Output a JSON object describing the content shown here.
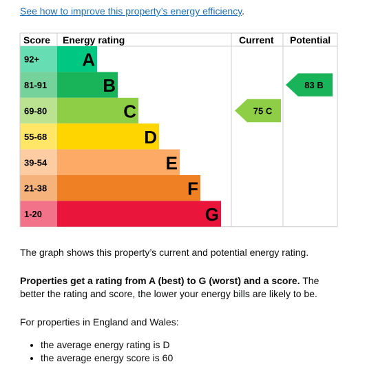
{
  "link": {
    "text": "See how to improve this property’s energy efficiency",
    "suffix": "."
  },
  "table": {
    "headers": [
      "Score",
      "Energy rating",
      "Current",
      "Potential"
    ],
    "rows": [
      {
        "score": "92+",
        "letter": "A",
        "color": "#00c781",
        "light": "#66ddb3"
      },
      {
        "score": "81-91",
        "letter": "B",
        "color": "#19b459",
        "light": "#75d29b"
      },
      {
        "score": "69-80",
        "letter": "C",
        "color": "#8dce46",
        "light": "#bbe290"
      },
      {
        "score": "55-68",
        "letter": "D",
        "color": "#ffd500",
        "light": "#ffe666"
      },
      {
        "score": "39-54",
        "letter": "E",
        "color": "#fcaa65",
        "light": "#fdcca3"
      },
      {
        "score": "21-38",
        "letter": "F",
        "color": "#ef8023",
        "light": "#f5b37b"
      },
      {
        "score": "1-20",
        "letter": "G",
        "color": "#e9153b",
        "light": "#f27389"
      }
    ],
    "current": {
      "score": 75,
      "band": "C"
    },
    "potential": {
      "score": 83,
      "band": "B"
    }
  },
  "paragraphs": {
    "graph": "The graph shows this property’s current and potential energy rating.",
    "rating_bold": "Properties get a rating from A (best) to G (worst) and a score.",
    "rating_rest": "The better the rating and score, the lower your energy bills are likely to be.",
    "england": "For properties in England and Wales:",
    "bullets": [
      "the average energy rating is D",
      "the average energy score is 60"
    ]
  }
}
